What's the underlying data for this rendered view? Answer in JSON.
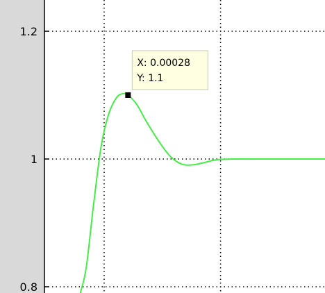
{
  "chart_data": {
    "type": "line",
    "title": "",
    "xlabel": "",
    "ylabel": "",
    "ylim": [
      0.79,
      1.245
    ],
    "xlim": [
      -0.00028,
      0.0016
    ],
    "yticks": [
      0.8,
      1,
      1.2
    ],
    "ytick_labels": [
      "0.8",
      "1",
      "1.2"
    ],
    "xgrid": [
      0.00012,
      0.0009
    ],
    "grid": true,
    "line_color": "#44ee44",
    "series": [
      {
        "x": [
          -4e-05,
          0.0,
          5e-05,
          0.0001,
          0.00015,
          0.0002,
          0.00024,
          0.00028,
          0.00034,
          0.0004,
          0.00048,
          0.00056,
          0.00064,
          0.00072,
          0.0008,
          0.00088,
          0.001,
          0.0012,
          0.0014,
          0.0016
        ],
        "y": [
          0.79,
          0.83,
          0.93,
          1.02,
          1.07,
          1.095,
          1.102,
          1.1,
          1.085,
          1.06,
          1.03,
          1.005,
          0.992,
          0.991,
          0.995,
          0.999,
          1.0,
          1.0,
          1.0,
          1.0
        ]
      }
    ],
    "datatip": {
      "x_label": "X: 0.00028",
      "y_label": "Y: 1.1",
      "x": 0.00028,
      "y": 1.1
    }
  }
}
